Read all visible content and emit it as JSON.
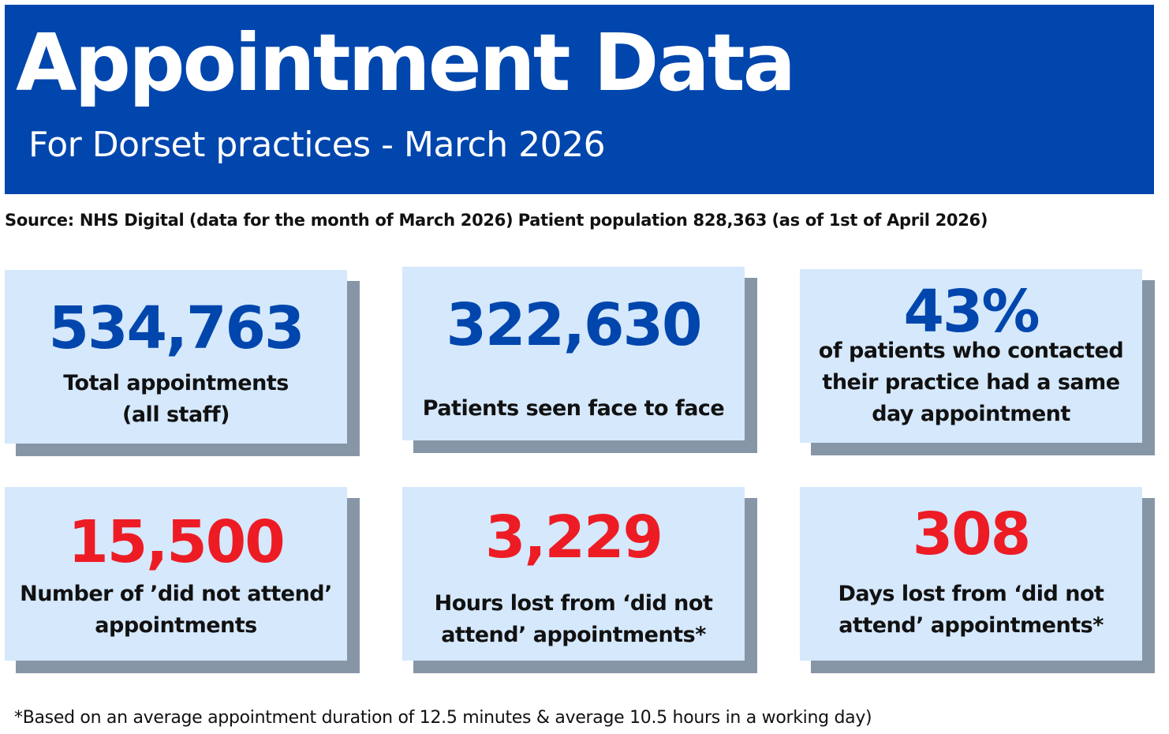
{
  "header": {
    "title": "Appointment Data",
    "subtitle": "For Dorset practices - March 2026"
  },
  "source": {
    "label": "Source: NHS Digital",
    "period": "(data for the month of March 2026)",
    "population_label": "Patient population 828,363",
    "population_date": "(as of 1st of April 2026)"
  },
  "stats": [
    {
      "value": "534,763",
      "label_lines": [
        "Total appointments",
        "(all staff)"
      ],
      "value_color": "#0046ad"
    },
    {
      "value": "322,630",
      "label_lines": [
        "Patients seen face to face"
      ],
      "value_color": "#0046ad"
    },
    {
      "value": "43%",
      "label_lines": [
        "of patients who contacted",
        "their practice had a same",
        "day appointment"
      ],
      "value_color": "#0046ad"
    },
    {
      "value": "15,500",
      "label_lines": [
        "Number of ’did not attend’",
        "appointments"
      ],
      "value_color": "#ed1c24"
    },
    {
      "value": "3,229",
      "label_lines": [
        "Hours lost from ‘did not",
        "attend’ appointments*"
      ],
      "value_color": "#ed1c24"
    },
    {
      "value": "308",
      "label_lines": [
        "Days lost from ‘did not",
        "attend’ appointments*"
      ],
      "value_color": "#ed1c24"
    }
  ],
  "footnote": "*Based on an average appointment duration of 12.5 minutes & average 10.5 hours in a working day)",
  "colors": {
    "header_bg": "#0046ad",
    "card_bg": "#d5e8fc",
    "card_shadow": "#8796a7",
    "value_blue": "#0046ad",
    "value_red": "#ed1c24"
  }
}
